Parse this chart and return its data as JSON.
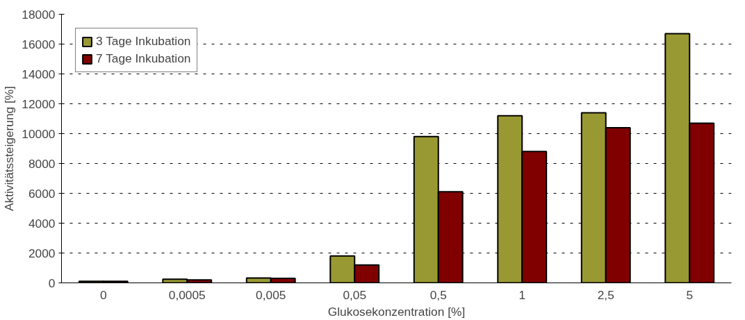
{
  "chart_data": {
    "type": "bar",
    "xlabel": "Glukosekonzentration [%]",
    "ylabel": "Aktivitätssteigerung [%]",
    "categories": [
      "0",
      "0,0005",
      "0,005",
      "0,05",
      "0,5",
      "1",
      "2,5",
      "5"
    ],
    "series": [
      {
        "name": "3 Tage Inkubation",
        "color": "#999933",
        "values": [
          100,
          250,
          320,
          1800,
          9800,
          11200,
          11400,
          16700
        ]
      },
      {
        "name": "7 Tage Inkubation",
        "color": "#800000",
        "values": [
          100,
          200,
          300,
          1200,
          6100,
          8800,
          10400,
          10700
        ]
      }
    ],
    "ylim": [
      0,
      18000
    ],
    "yticks": [
      0,
      2000,
      4000,
      6000,
      8000,
      10000,
      12000,
      14000,
      16000,
      18000
    ],
    "grid": "y",
    "legend": "top left"
  }
}
